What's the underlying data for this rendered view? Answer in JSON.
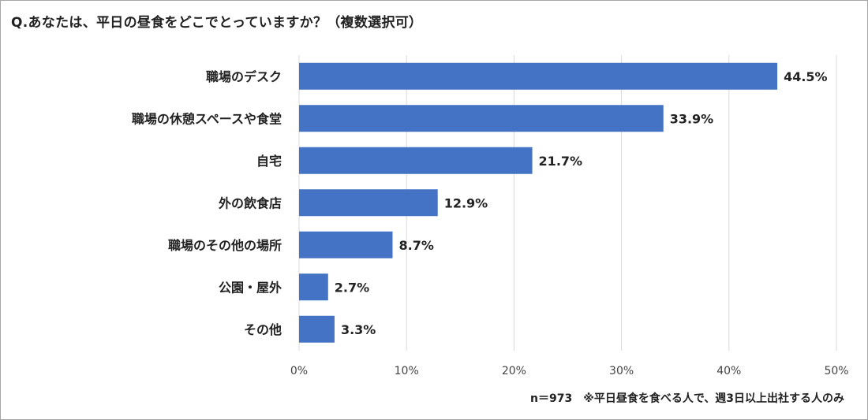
{
  "title": "Q.あなたは、平日の昼食をどこでとっていますか？（複数選択可）",
  "note": "n＝973　※平日昼食を食べる人で、週3日以上出社する人のみ",
  "colors": {
    "bar": "#4472C4",
    "grid": "#d9d9d9"
  },
  "chart_data": {
    "type": "bar",
    "orientation": "horizontal",
    "title": "Q.あなたは、平日の昼食をどこでとっていますか？（複数選択可）",
    "categories": [
      "職場のデスク",
      "職場の休憩スペースや食堂",
      "自宅",
      "外の飲食店",
      "職場のその他の場所",
      "公園・屋外",
      "その他"
    ],
    "values": [
      44.5,
      33.9,
      21.7,
      12.9,
      8.7,
      2.7,
      3.3
    ],
    "data_labels": [
      "44.5%",
      "33.9%",
      "21.7%",
      "12.9%",
      "8.7%",
      "2.7%",
      "3.3%"
    ],
    "xticks": [
      "0%",
      "10%",
      "20%",
      "30%",
      "40%",
      "50%"
    ],
    "xlim": [
      0,
      50
    ],
    "grid": true,
    "xlabel": "",
    "ylabel": ""
  }
}
